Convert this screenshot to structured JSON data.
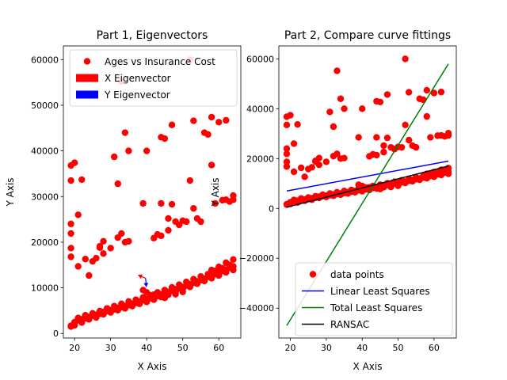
{
  "chart_data": [
    {
      "type": "scatter",
      "title": "Part 1, Eigenvectors",
      "xlabel": "X Axis",
      "ylabel": "Y Axis",
      "xlim": [
        16.9,
        66.1
      ],
      "ylim": [
        -1000,
        63000
      ],
      "xticks": [
        20,
        30,
        40,
        50,
        60
      ],
      "yticks": [
        0,
        10000,
        20000,
        30000,
        40000,
        50000,
        60000
      ],
      "legend": {
        "position": "top-right",
        "entries": [
          {
            "label": "Ages vs Insurance Cost",
            "kind": "marker",
            "color": "#ff0000"
          },
          {
            "label": "X Eigenvector",
            "kind": "patch",
            "color": "#ff0000"
          },
          {
            "label": "Y Eigenvector",
            "kind": "patch",
            "color": "#0000ff"
          }
        ]
      },
      "series": [
        {
          "name": "Ages vs Insurance Cost",
          "color": "#ff0000",
          "points": [
            [
              19,
              16800
            ],
            [
              19,
              18700
            ],
            [
              19,
              21900
            ],
            [
              19,
              24000
            ],
            [
              19,
              33500
            ],
            [
              19,
              36800
            ],
            [
              20,
              37400
            ],
            [
              19,
              1700
            ],
            [
              20,
              2400
            ],
            [
              21,
              26000
            ],
            [
              21,
              14700
            ],
            [
              22,
              33700
            ],
            [
              23,
              16300
            ],
            [
              24,
              12700
            ],
            [
              25,
              15800
            ],
            [
              26,
              16500
            ],
            [
              27,
              18800
            ],
            [
              27,
              19100
            ],
            [
              28,
              17500
            ],
            [
              28,
              20200
            ],
            [
              30,
              18700
            ],
            [
              31,
              38700
            ],
            [
              32,
              32800
            ],
            [
              32,
              21000
            ],
            [
              33,
              21900
            ],
            [
              33,
              55200
            ],
            [
              34,
              44000
            ],
            [
              34,
              20000
            ],
            [
              35,
              20200
            ],
            [
              35,
              40000
            ],
            [
              39,
              28500
            ],
            [
              40,
              40000
            ],
            [
              42,
              20900
            ],
            [
              43,
              21700
            ],
            [
              44,
              21400
            ],
            [
              44,
              43000
            ],
            [
              44,
              28500
            ],
            [
              45,
              42700
            ],
            [
              46,
              22600
            ],
            [
              46,
              25200
            ],
            [
              47,
              45700
            ],
            [
              47,
              28300
            ],
            [
              48,
              24500
            ],
            [
              49,
              23800
            ],
            [
              50,
              24700
            ],
            [
              51,
              24500
            ],
            [
              52,
              33500
            ],
            [
              52,
              60000
            ],
            [
              53,
              46600
            ],
            [
              53,
              27400
            ],
            [
              54,
              25200
            ],
            [
              55,
              24500
            ],
            [
              56,
              44000
            ],
            [
              57,
              43600
            ],
            [
              58,
              47400
            ],
            [
              58,
              36900
            ],
            [
              59,
              28500
            ],
            [
              60,
              46300
            ],
            [
              61,
              29200
            ],
            [
              62,
              46700
            ],
            [
              62,
              29300
            ],
            [
              63,
              28900
            ],
            [
              64,
              29300
            ],
            [
              64,
              30200
            ],
            [
              19,
              1500
            ],
            [
              20,
              2500
            ],
            [
              21,
              2900
            ],
            [
              22,
              3100
            ],
            [
              23,
              3300
            ],
            [
              24,
              3600
            ],
            [
              25,
              3900
            ],
            [
              26,
              4100
            ],
            [
              27,
              4300
            ],
            [
              28,
              4700
            ],
            [
              29,
              4900
            ],
            [
              30,
              5100
            ],
            [
              31,
              5300
            ],
            [
              32,
              5600
            ],
            [
              33,
              5800
            ],
            [
              34,
              6000
            ],
            [
              35,
              6200
            ],
            [
              36,
              6500
            ],
            [
              37,
              6700
            ],
            [
              38,
              7000
            ],
            [
              39,
              7300
            ],
            [
              40,
              7500
            ],
            [
              41,
              7700
            ],
            [
              42,
              8000
            ],
            [
              43,
              8200
            ],
            [
              44,
              8500
            ],
            [
              45,
              8800
            ],
            [
              46,
              9100
            ],
            [
              47,
              9400
            ],
            [
              48,
              9700
            ],
            [
              49,
              9900
            ],
            [
              50,
              10200
            ],
            [
              51,
              10500
            ],
            [
              52,
              10800
            ],
            [
              53,
              11100
            ],
            [
              54,
              11400
            ],
            [
              55,
              11700
            ],
            [
              56,
              12000
            ],
            [
              57,
              12400
            ],
            [
              58,
              12700
            ],
            [
              59,
              13000
            ],
            [
              60,
              13300
            ],
            [
              61,
              13700
            ],
            [
              62,
              14000
            ],
            [
              63,
              14400
            ],
            [
              64,
              14700
            ],
            [
              20,
              1800
            ],
            [
              22,
              2400
            ],
            [
              24,
              3100
            ],
            [
              26,
              3500
            ],
            [
              28,
              4200
            ],
            [
              30,
              4600
            ],
            [
              32,
              5100
            ],
            [
              34,
              5500
            ],
            [
              36,
              6000
            ],
            [
              38,
              6500
            ],
            [
              40,
              6900
            ],
            [
              42,
              7400
            ],
            [
              44,
              8000
            ],
            [
              46,
              8500
            ],
            [
              48,
              9100
            ],
            [
              50,
              9700
            ],
            [
              52,
              10200
            ],
            [
              54,
              10900
            ],
            [
              56,
              11500
            ],
            [
              58,
              12100
            ],
            [
              60,
              12700
            ],
            [
              62,
              13400
            ],
            [
              64,
              13900
            ],
            [
              21,
              3400
            ],
            [
              23,
              4000
            ],
            [
              25,
              4400
            ],
            [
              27,
              4900
            ],
            [
              29,
              5500
            ],
            [
              31,
              6000
            ],
            [
              33,
              6500
            ],
            [
              35,
              7000
            ],
            [
              37,
              7400
            ],
            [
              39,
              7900
            ],
            [
              41,
              8400
            ],
            [
              43,
              9000
            ],
            [
              45,
              9500
            ],
            [
              47,
              10100
            ],
            [
              49,
              10700
            ],
            [
              51,
              11300
            ],
            [
              53,
              11900
            ],
            [
              55,
              12500
            ],
            [
              57,
              13000
            ],
            [
              59,
              13700
            ],
            [
              61,
              14300
            ],
            [
              63,
              15000
            ],
            [
              64,
              16200
            ],
            [
              62,
              15500
            ],
            [
              60,
              14600
            ],
            [
              58,
              13900
            ],
            [
              39,
              9500
            ],
            [
              40,
              9000
            ],
            [
              42,
              8500
            ],
            [
              45,
              7800
            ],
            [
              48,
              8600
            ],
            [
              50,
              9100
            ]
          ]
        },
        {
          "name": "X Eigenvector",
          "color": "#ff0000",
          "arrow_tail": [
            39.7,
            12100
          ],
          "arrow_head": [
            37.6,
            12800
          ]
        },
        {
          "name": "Y Eigenvector",
          "color": "#0000ff",
          "arrow_tail": [
            39.7,
            12100
          ],
          "arrow_head": [
            39.9,
            10200
          ]
        }
      ]
    },
    {
      "type": "scatter",
      "title": "Part 2, Compare curve fittings",
      "xlabel": "X Axis",
      "ylabel": "Y Axis",
      "xlim": [
        16.8,
        66.2
      ],
      "ylim": [
        -52000,
        65200
      ],
      "xticks": [
        20,
        30,
        40,
        50,
        60
      ],
      "yticks": [
        -40000,
        -20000,
        0,
        20000,
        40000,
        60000
      ],
      "legend": {
        "position": "bottom-right",
        "entries": [
          {
            "label": "data points",
            "kind": "marker",
            "color": "#ff0000"
          },
          {
            "label": "Linear Least Squares",
            "kind": "line",
            "color": "#0000ff"
          },
          {
            "label": "Total Least Squares",
            "kind": "line",
            "color": "#008000"
          },
          {
            "label": "RANSAC",
            "kind": "line",
            "color": "#000000"
          }
        ]
      },
      "series": [
        {
          "name": "data points",
          "color": "#ff0000",
          "points_from": 0
        },
        {
          "name": "Linear Least Squares",
          "color": "#0000ff",
          "x": [
            19,
            64
          ],
          "y": [
            7000,
            19000
          ]
        },
        {
          "name": "Total Least Squares",
          "color": "#008000",
          "x": [
            19,
            64
          ],
          "y": [
            -47000,
            58000
          ]
        },
        {
          "name": "RANSAC",
          "color": "#000000",
          "x": [
            19,
            64
          ],
          "y": [
            500,
            17000
          ]
        }
      ]
    }
  ]
}
